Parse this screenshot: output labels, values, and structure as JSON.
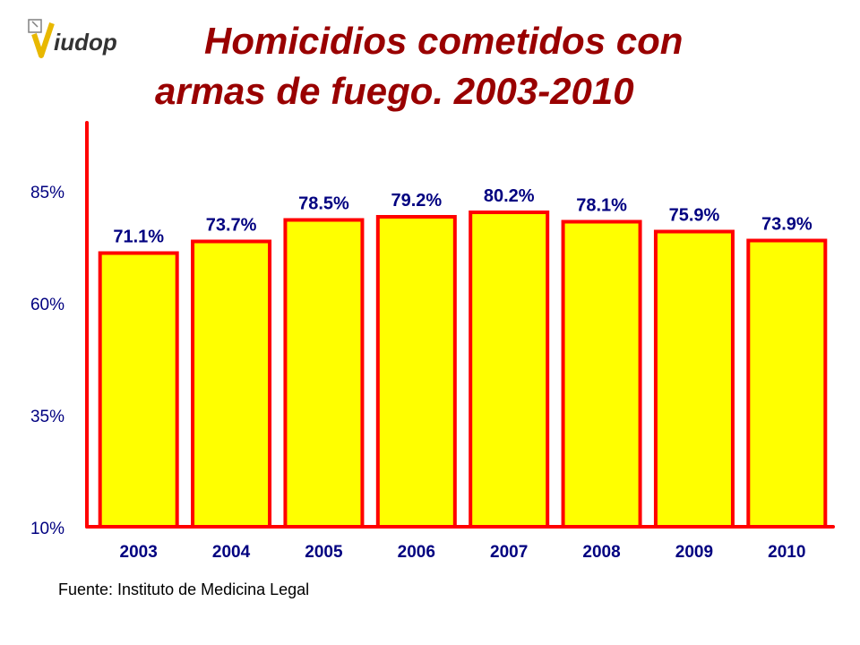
{
  "header": {
    "logo_text": "iudop",
    "title_line1": "Homicidios cometidos con",
    "title_line2": "armas de fuego. 2003-2010"
  },
  "footer": {
    "source": "Fuente: Instituto de Medicina Legal"
  },
  "colors": {
    "title": "#990000",
    "bar_fill": "#ffff00",
    "bar_stroke": "#ff0000",
    "axis": "#ff0000",
    "data_label": "#000080"
  },
  "chart_data": {
    "type": "bar",
    "title": "Homicidios cometidos con armas de fuego. 2003-2010",
    "categories": [
      "2003",
      "2004",
      "2005",
      "2006",
      "2007",
      "2008",
      "2009",
      "2010"
    ],
    "values": [
      71.1,
      73.7,
      78.5,
      79.2,
      80.2,
      78.1,
      75.9,
      73.9
    ],
    "data_labels": [
      "71.1%",
      "73.7%",
      "78.5%",
      "79.2%",
      "80.2%",
      "78.1%",
      "75.9%",
      "73.9%"
    ],
    "yticks": [
      10,
      35,
      60,
      85
    ],
    "ytick_labels": [
      "10%",
      "35%",
      "60%",
      "85%"
    ],
    "ylim": [
      10,
      100
    ],
    "grid": false,
    "legend": "none"
  }
}
